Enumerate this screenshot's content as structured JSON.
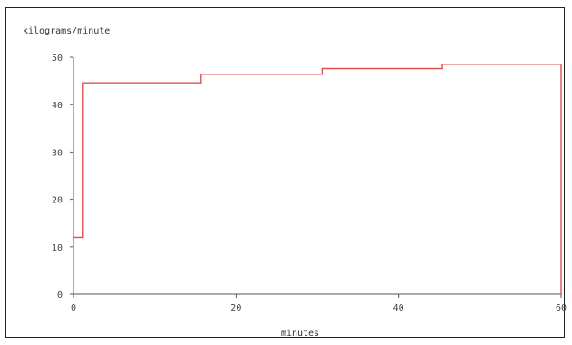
{
  "chart_data": {
    "type": "line",
    "step": true,
    "title": "",
    "ylabel": "kilograms/minute",
    "xlabel": "minutes",
    "xlim": [
      0,
      60
    ],
    "ylim": [
      0,
      50
    ],
    "xticks": [
      0,
      20,
      40,
      60
    ],
    "yticks": [
      0,
      10,
      20,
      30,
      40,
      50
    ],
    "grid": false,
    "color": "#e05050",
    "series": [
      {
        "x": [
          0,
          1.2,
          1.2,
          15.7,
          15.7,
          30.6,
          30.6,
          45.4,
          45.4,
          60,
          60
        ],
        "y": [
          12,
          12,
          44.6,
          44.6,
          46.4,
          46.4,
          47.6,
          47.6,
          48.5,
          48.5,
          0
        ]
      }
    ]
  }
}
